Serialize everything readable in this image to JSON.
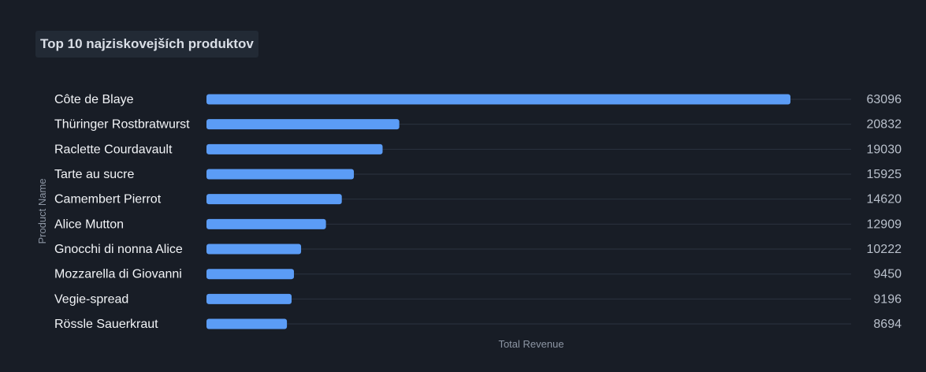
{
  "chart_data": {
    "type": "bar",
    "orientation": "horizontal",
    "title": "Top 10 najziskovejších produktov",
    "xlabel": "Total Revenue",
    "ylabel": "Product Name",
    "categories": [
      "Côte de Blaye",
      "Thüringer Rostbratwurst",
      "Raclette Courdavault",
      "Tarte au sucre",
      "Camembert Pierrot",
      "Alice Mutton",
      "Gnocchi di nonna Alice",
      "Mozzarella di Giovanni",
      "Vegie-spread",
      "Rössle Sauerkraut"
    ],
    "values": [
      63096,
      20832,
      19030,
      15925,
      14620,
      12909,
      10222,
      9450,
      9196,
      8694
    ],
    "xlim": [
      0,
      63096
    ],
    "grid": true,
    "bar_color": "#5b9cf6",
    "background_color": "#181d26"
  }
}
